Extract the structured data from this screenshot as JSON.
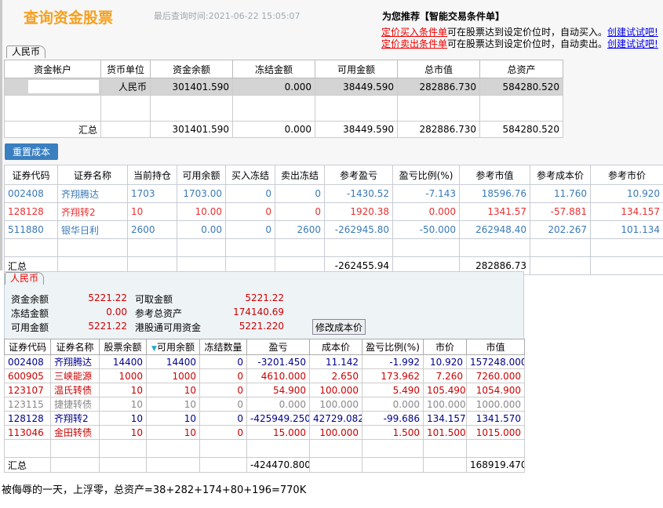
{
  "header": {
    "title": "查询资金股票",
    "last_query": "最后查询时间:2021-06-22 15:05:07",
    "recommend": "为您推荐【智能交易条件单】",
    "promo": [
      {
        "link": "定价买入条件单",
        "text": "可在股票达到设定价位时，自动买入。",
        "cta": "创建试试吧!"
      },
      {
        "link": "定价卖出条件单",
        "text": "可在股票达到设定价位时，自动卖出。",
        "cta": "创建试试吧!"
      }
    ]
  },
  "account": {
    "tab": "人民币",
    "columns": [
      "资金帐户",
      "货币单位",
      "资金余额",
      "冻结金额",
      "可用金额",
      "总市值",
      "总资产"
    ],
    "rows": [
      [
        "",
        "人民币",
        "301401.590",
        "0.000",
        "38449.590",
        "282886.730",
        "584280.520"
      ],
      [
        "",
        "",
        "",
        "",
        "",
        "",
        ""
      ],
      [
        "汇总",
        "",
        "301401.590",
        "0.000",
        "38449.590",
        "282886.730",
        "584280.520"
      ]
    ]
  },
  "reset_cost_label": "重置成本",
  "positions": {
    "columns": [
      "证券代码",
      "证券名称",
      "当前持仓",
      "可用余额",
      "买入冻结",
      "卖出冻结",
      "参考盈亏",
      "盈亏比例(%)",
      "参考市值",
      "参考成本价",
      "参考市价"
    ],
    "rows": [
      [
        "002408",
        "齐翔腾达",
        "1703",
        "1703.00",
        "0",
        "0",
        "-1430.52",
        "-7.143",
        "18596.76",
        "11.760",
        "10.920"
      ],
      [
        "128128",
        "齐翔转2",
        "10",
        "10.00",
        "0",
        "0",
        "1920.38",
        "0.000",
        "1341.57",
        "-57.881",
        "134.157"
      ],
      [
        "511880",
        "银华日利",
        "2600",
        "0.00",
        "0",
        "2600",
        "-262945.80",
        "-50.000",
        "262948.40",
        "202.267",
        "101.134"
      ],
      [
        "",
        "",
        "",
        "",
        "",
        "",
        "",
        "",
        "",
        "",
        ""
      ],
      [
        "汇总",
        "",
        "",
        "",
        "",
        "",
        "-262455.94",
        "",
        "282886.73",
        "",
        ""
      ]
    ],
    "row_colors": [
      "blue",
      "red",
      "blue",
      "",
      "total"
    ]
  },
  "second": {
    "tab": "人民币",
    "info": [
      {
        "label": "资金余额",
        "value": "5221.22",
        "label2": "可取金额",
        "value2": "5221.22"
      },
      {
        "label": "冻结金额",
        "value": "0.00",
        "label2": "参考总资产",
        "value2": "174140.69"
      },
      {
        "label": "可用金额",
        "value": "5221.22",
        "label2": "港股通可用资金",
        "value2": "5221.220"
      }
    ],
    "modify_cost_label": "修改成本价",
    "columns": [
      "证券代码",
      "证券名称",
      "股票余额",
      "可用余额",
      "冻结数量",
      "盈亏",
      "成本价",
      "盈亏比例(%)",
      "市价",
      "市值"
    ],
    "sorted_column": "可用余额",
    "rows": [
      [
        "002408",
        "齐翔腾达",
        "14400",
        "14400",
        "0",
        "-3201.450",
        "11.142",
        "-1.992",
        "10.920",
        "157248.000"
      ],
      [
        "600905",
        "三峡能源",
        "1000",
        "1000",
        "0",
        "4610.000",
        "2.650",
        "173.962",
        "7.260",
        "7260.000"
      ],
      [
        "123107",
        "温氏转债",
        "10",
        "10",
        "0",
        "54.900",
        "100.000",
        "5.490",
        "105.490",
        "1054.900"
      ],
      [
        "123115",
        "捷捷转债",
        "10",
        "10",
        "0",
        "0.000",
        "100.000",
        "0.000",
        "100.000",
        "1000.000"
      ],
      [
        "128128",
        "齐翔转2",
        "10",
        "10",
        "0",
        "-425949.250",
        "42729.082",
        "-99.686",
        "134.157",
        "1341.570"
      ],
      [
        "113046",
        "金田转债",
        "10",
        "10",
        "0",
        "15.000",
        "100.000",
        "1.500",
        "101.500",
        "1015.000"
      ],
      [
        "",
        "",
        "",
        "",
        "",
        "",
        "",
        "",
        "",
        ""
      ],
      [
        "汇总",
        "",
        "",
        "",
        "",
        "-424470.800",
        "",
        "",
        "",
        "168919.470"
      ]
    ],
    "row_colors": [
      "blue",
      "red",
      "red",
      "gray",
      "blue",
      "red",
      "",
      "total"
    ]
  },
  "note": "被侮辱的一天，上浮零，总资产=38+282+174+80+196=770K"
}
